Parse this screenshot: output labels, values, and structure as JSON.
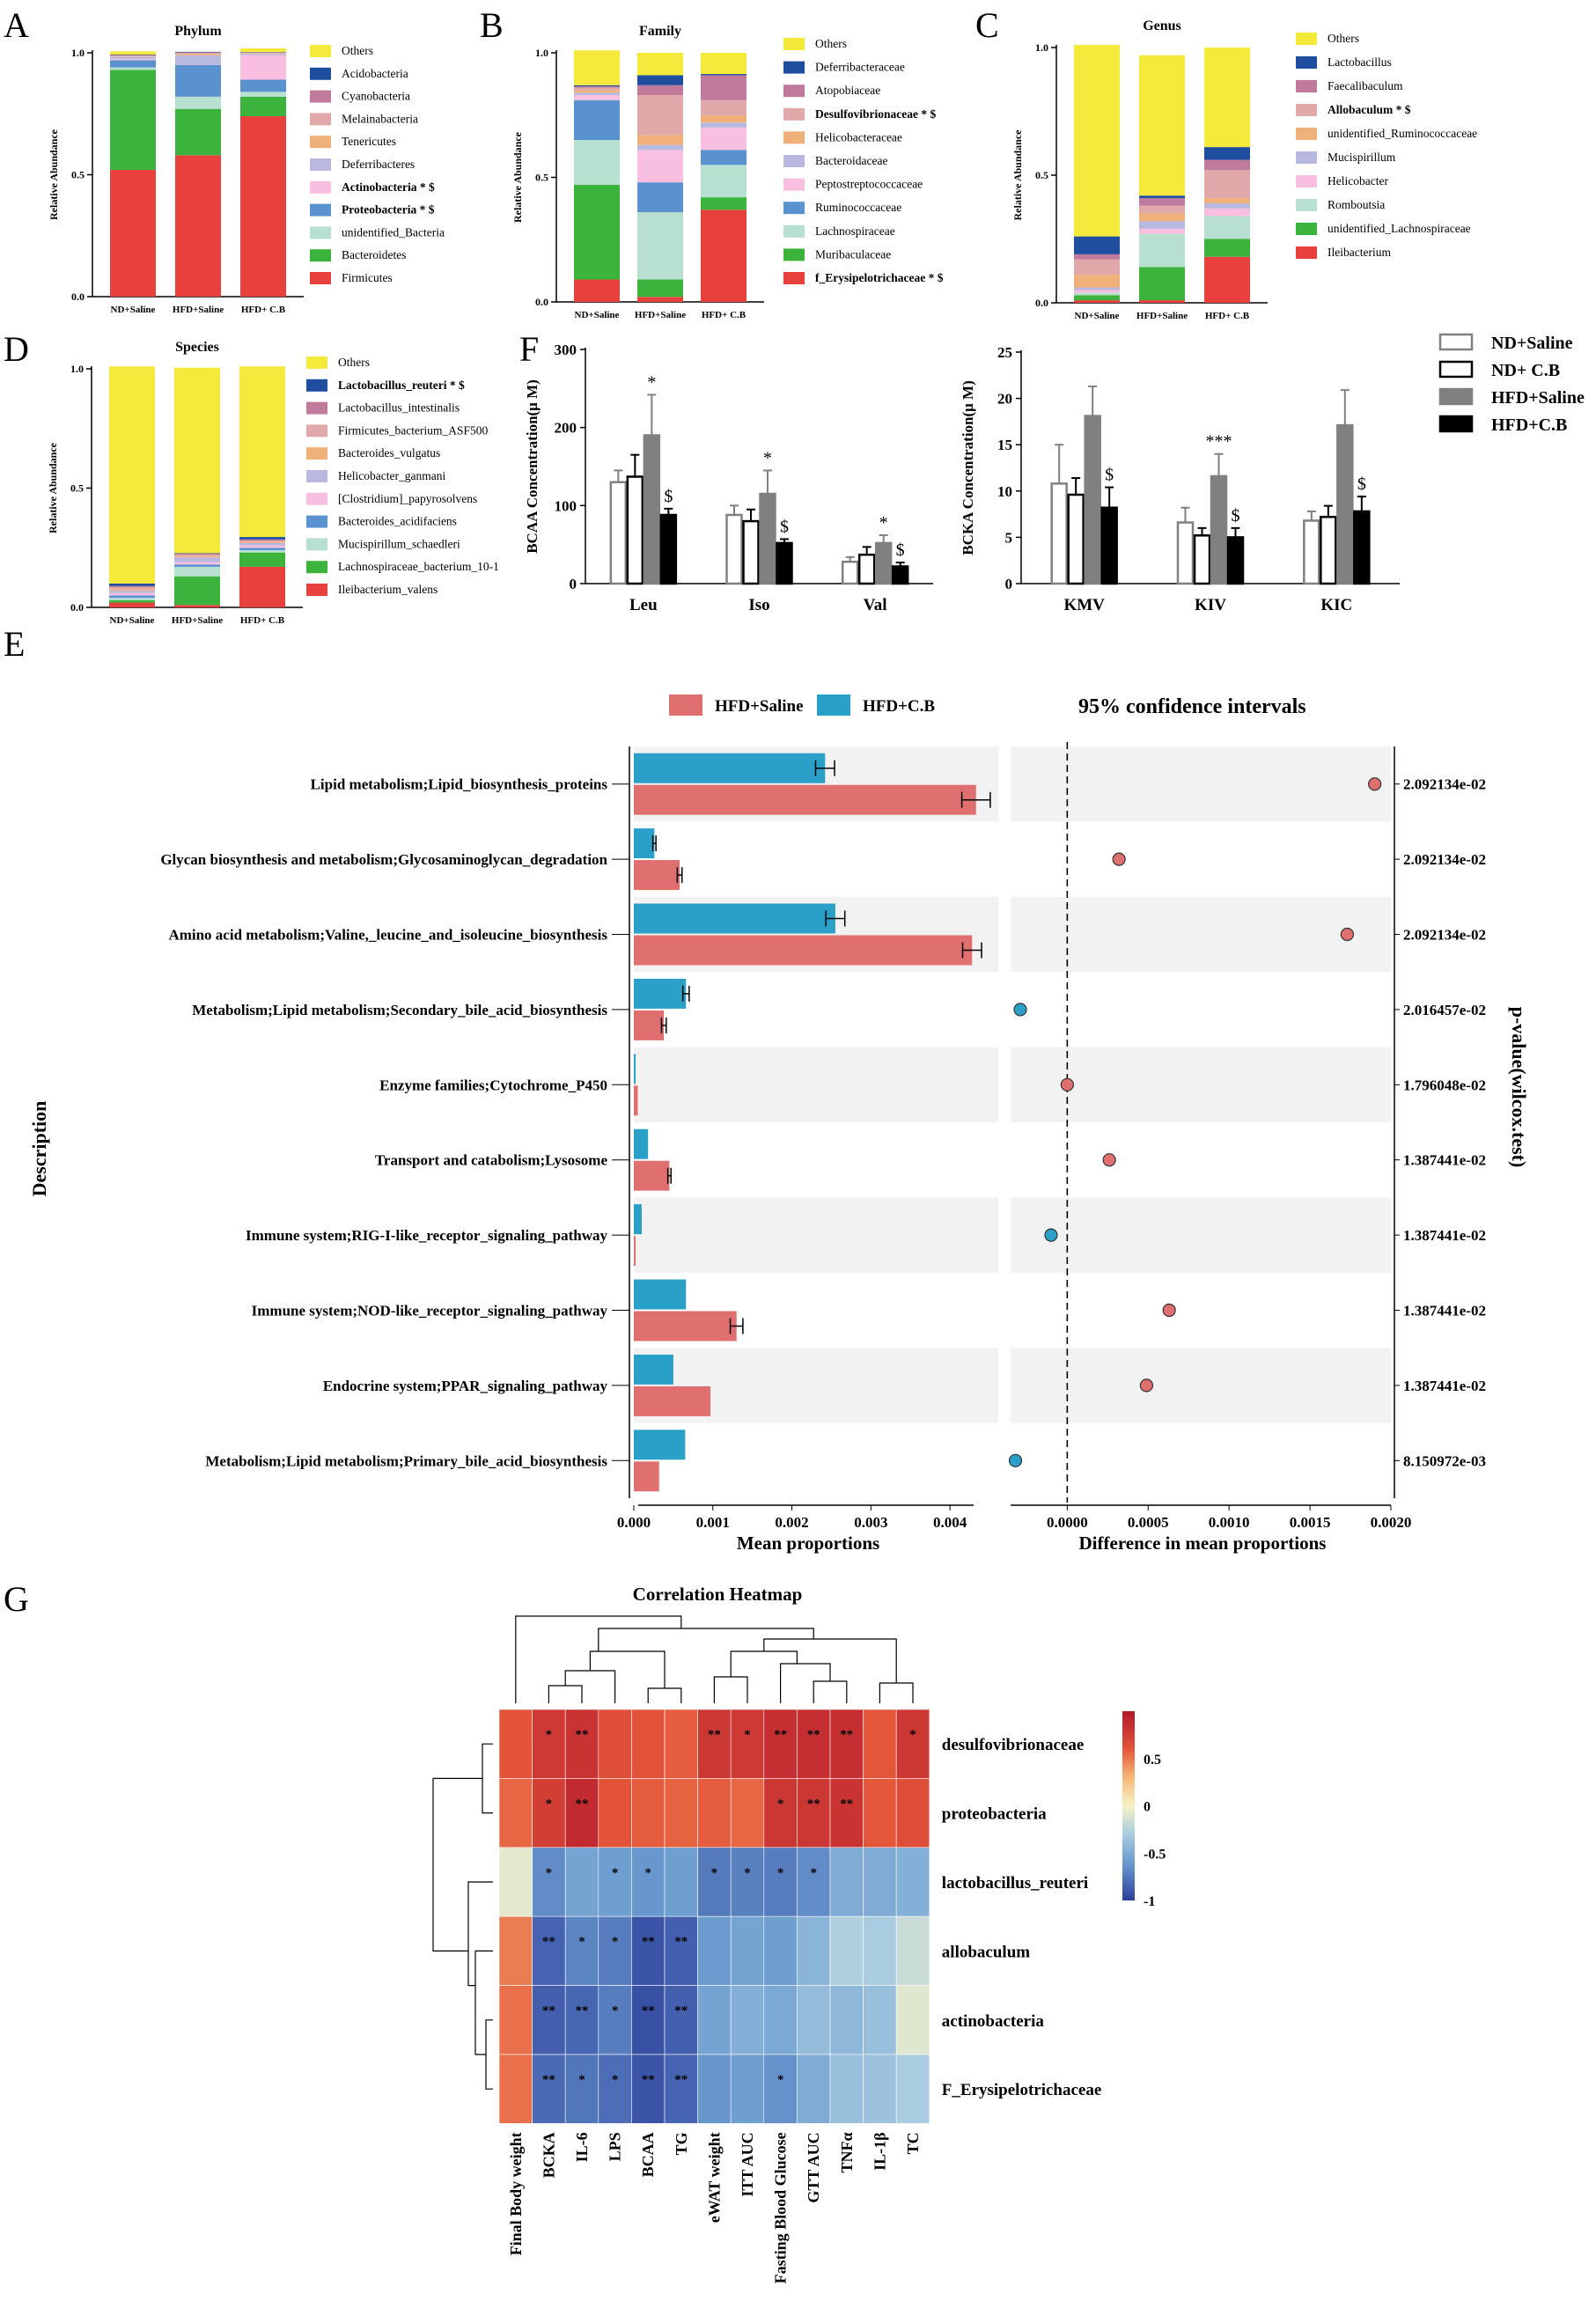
{
  "colors": {
    "Others": "#f5ea3c",
    "blue_dark": "#1f4e9e",
    "mauve": "#c07a9c",
    "pink_tan": "#e0a8a8",
    "orange_tan": "#f0b07a",
    "lavender": "#b8b8e0",
    "light_pink": "#f8bfe0",
    "mid_blue": "#5a92d0",
    "mint": "#b8e0d0",
    "green": "#3cb33c",
    "red": "#e8403c",
    "hfd_saline_E": "#e07070",
    "hfd_cb_E": "#2aa0c8",
    "grey_bar": "#808080",
    "black_bar": "#000000",
    "heat_red": "#b2182b",
    "heat_mid": "#f7f2c8",
    "heat_blue": "#2c3e9b"
  },
  "chart_data": [
    {
      "panel": "A",
      "type": "bar",
      "stacked": true,
      "title": "Phylum",
      "ylabel": "Relative Abundance",
      "ylim": [
        0,
        1
      ],
      "yticks": [
        "0.0",
        "0.5",
        "1.0"
      ],
      "categories": [
        "ND+Saline",
        "HFD+Saline",
        "HFD+ C.B"
      ],
      "series": [
        {
          "name": "Firmicutes",
          "color": "#e8403c",
          "values": [
            0.52,
            0.58,
            0.74
          ]
        },
        {
          "name": "Bacteroidetes",
          "color": "#3cb33c",
          "values": [
            0.41,
            0.19,
            0.08
          ]
        },
        {
          "name": "unidentified_Bacteria",
          "color": "#b8e0d0",
          "values": [
            0.01,
            0.05,
            0.02
          ]
        },
        {
          "name": "Proteobacteria  * $",
          "color": "#5a92d0",
          "values": [
            0.03,
            0.13,
            0.05
          ]
        },
        {
          "name": "Actinobacteria  * $",
          "color": "#f8bfe0",
          "values": [
            0.005,
            0.0,
            0.1
          ]
        },
        {
          "name": "Deferribacteres",
          "color": "#b8b8e0",
          "values": [
            0.01,
            0.04,
            0.005
          ]
        },
        {
          "name": "Tenericutes",
          "color": "#f0b07a",
          "values": [
            0.002,
            0.005,
            0.002
          ]
        },
        {
          "name": "Melainabacteria",
          "color": "#e0a8a8",
          "values": [
            0.002,
            0.005,
            0.002
          ]
        },
        {
          "name": "Cyanobacteria",
          "color": "#c07a9c",
          "values": [
            0.002,
            0.002,
            0.002
          ]
        },
        {
          "name": "Acidobacteria",
          "color": "#1f4e9e",
          "values": [
            0.002,
            0.002,
            0.002
          ]
        },
        {
          "name": "Others",
          "color": "#f5ea3c",
          "values": [
            0.013,
            0.0,
            0.015
          ]
        }
      ]
    },
    {
      "panel": "B",
      "type": "bar",
      "stacked": true,
      "title": "Family",
      "ylabel": "Relative Abundance",
      "ylim": [
        0,
        1
      ],
      "yticks": [
        "0.0",
        "0.5",
        "1.0"
      ],
      "categories": [
        "ND+Saline",
        "HFD+Saline",
        "HFD+ C.B"
      ],
      "series": [
        {
          "name": "f_Erysipelotrichaceae  * $",
          "color": "#e8403c",
          "values": [
            0.09,
            0.02,
            0.37
          ]
        },
        {
          "name": "Muribaculaceae",
          "color": "#3cb33c",
          "values": [
            0.38,
            0.07,
            0.05
          ]
        },
        {
          "name": "Lachnospiraceae",
          "color": "#b8e0d0",
          "values": [
            0.18,
            0.27,
            0.13
          ]
        },
        {
          "name": "Ruminococcaceae",
          "color": "#5a92d0",
          "values": [
            0.16,
            0.12,
            0.06
          ]
        },
        {
          "name": "Peptostreptococcaceae",
          "color": "#f8bfe0",
          "values": [
            0.02,
            0.13,
            0.09
          ]
        },
        {
          "name": "Bacteroidaceae",
          "color": "#b8b8e0",
          "values": [
            0.01,
            0.02,
            0.02
          ]
        },
        {
          "name": "Helicobacteraceae",
          "color": "#f0b07a",
          "values": [
            0.01,
            0.04,
            0.03
          ]
        },
        {
          "name": "Desulfovibrionaceae  * $",
          "color": "#e0a8a8",
          "values": [
            0.01,
            0.16,
            0.06
          ]
        },
        {
          "name": "Atopobiaceae",
          "color": "#c07a9c",
          "values": [
            0.005,
            0.04,
            0.1
          ]
        },
        {
          "name": "Deferribacteraceae",
          "color": "#1f4e9e",
          "values": [
            0.005,
            0.04,
            0.005
          ]
        },
        {
          "name": "Others",
          "color": "#f5ea3c",
          "values": [
            0.14,
            0.09,
            0.085
          ]
        }
      ]
    },
    {
      "panel": "C",
      "type": "bar",
      "stacked": true,
      "title": "Genus",
      "ylabel": "Relative Abundance",
      "ylim": [
        0,
        1
      ],
      "yticks": [
        "0.0",
        "0.5",
        "1.0"
      ],
      "categories": [
        "ND+Saline",
        "HFD+Saline",
        "HFD+ C.B"
      ],
      "series": [
        {
          "name": "Ileibacterium",
          "color": "#e8403c",
          "values": [
            0.01,
            0.01,
            0.18
          ]
        },
        {
          "name": "unidentified_Lachnospiraceae",
          "color": "#3cb33c",
          "values": [
            0.02,
            0.13,
            0.07
          ]
        },
        {
          "name": "Romboutsia",
          "color": "#b8e0d0",
          "values": [
            0.01,
            0.13,
            0.09
          ]
        },
        {
          "name": "Helicobacter",
          "color": "#f8bfe0",
          "values": [
            0.01,
            0.02,
            0.03
          ]
        },
        {
          "name": "Mucispirillum",
          "color": "#b8b8e0",
          "values": [
            0.01,
            0.03,
            0.02
          ]
        },
        {
          "name": "unidentified_Ruminococcaceae",
          "color": "#f0b07a",
          "values": [
            0.05,
            0.03,
            0.02
          ]
        },
        {
          "name": "Allobaculum  * $",
          "color": "#e0a8a8",
          "values": [
            0.06,
            0.03,
            0.11
          ]
        },
        {
          "name": "Faecalibaculum",
          "color": "#c07a9c",
          "values": [
            0.02,
            0.03,
            0.04
          ]
        },
        {
          "name": "Lactobacillus",
          "color": "#1f4e9e",
          "values": [
            0.07,
            0.01,
            0.05
          ]
        },
        {
          "name": "Others",
          "color": "#f5ea3c",
          "values": [
            0.75,
            0.55,
            0.39
          ]
        }
      ]
    },
    {
      "panel": "D",
      "type": "bar",
      "stacked": true,
      "title": "Species",
      "ylabel": "Relative Abundance",
      "ylim": [
        0,
        1
      ],
      "yticks": [
        "0.0",
        "0.5",
        "1.0"
      ],
      "categories": [
        "ND+Saline",
        "HFD+Saline",
        "HFD+ C.B"
      ],
      "series": [
        {
          "name": "Ileibacterium_valens",
          "color": "#e8403c",
          "values": [
            0.02,
            0.01,
            0.17
          ]
        },
        {
          "name": "Lachnospiraceae_bacterium_10-1",
          "color": "#3cb33c",
          "values": [
            0.01,
            0.12,
            0.06
          ]
        },
        {
          "name": "Mucispirillum_schaedleri",
          "color": "#b8e0d0",
          "values": [
            0.01,
            0.04,
            0.01
          ]
        },
        {
          "name": "Bacteroides_acidifaciens",
          "color": "#5a92d0",
          "values": [
            0.01,
            0.01,
            0.01
          ]
        },
        {
          "name": "[Clostridium]_papyrosolvens",
          "color": "#f8bfe0",
          "values": [
            0.01,
            0.01,
            0.01
          ]
        },
        {
          "name": "Helicobacter_ganmani",
          "color": "#b8b8e0",
          "values": [
            0.01,
            0.02,
            0.01
          ]
        },
        {
          "name": "Bacteroides_vulgatus",
          "color": "#f0b07a",
          "values": [
            0.005,
            0.005,
            0.005
          ]
        },
        {
          "name": "Firmicutes_bacterium_ASF500",
          "color": "#e0a8a8",
          "values": [
            0.01,
            0.005,
            0.005
          ]
        },
        {
          "name": "Lactobacillus_intestinalis",
          "color": "#c07a9c",
          "values": [
            0.005,
            0.005,
            0.005
          ]
        },
        {
          "name": "Lactobacillus_reuteri  * $",
          "color": "#1f4e9e",
          "values": [
            0.01,
            0.002,
            0.01
          ]
        },
        {
          "name": "Others",
          "color": "#f5ea3c",
          "values": [
            0.91,
            0.778,
            0.715
          ]
        }
      ]
    },
    {
      "panel": "F-left",
      "type": "bar",
      "ylabel": "BCAA Concentration(μ M)",
      "ylim": [
        0,
        300
      ],
      "yticks": [
        "0",
        "100",
        "200",
        "300"
      ],
      "categories": [
        "Leu",
        "Iso",
        "Val"
      ],
      "groups": [
        "ND+Saline",
        "ND+ C.B",
        "HFD+Saline",
        "HFD+C.B"
      ],
      "series": [
        {
          "name": "ND+Saline",
          "values": [
            130,
            88,
            28
          ],
          "errors": [
            15,
            12,
            6
          ]
        },
        {
          "name": "ND+ C.B",
          "values": [
            137,
            80,
            37
          ],
          "errors": [
            28,
            15,
            10
          ]
        },
        {
          "name": "HFD+Saline",
          "values": [
            190,
            115,
            52
          ],
          "errors": [
            52,
            30,
            10
          ]
        },
        {
          "name": "HFD+C.B",
          "values": [
            88,
            52,
            22
          ],
          "errors": [
            8,
            5,
            5
          ]
        }
      ],
      "annotations": [
        {
          "category": "Leu",
          "group": "HFD+Saline",
          "text": "*"
        },
        {
          "category": "Leu",
          "group": "HFD+C.B",
          "text": "$"
        },
        {
          "category": "Iso",
          "group": "HFD+Saline",
          "text": "*"
        },
        {
          "category": "Iso",
          "group": "HFD+C.B",
          "text": "$"
        },
        {
          "category": "Val",
          "group": "HFD+Saline",
          "text": "*"
        },
        {
          "category": "Val",
          "group": "HFD+C.B",
          "text": "$"
        }
      ]
    },
    {
      "panel": "F-right",
      "type": "bar",
      "ylabel": "BCKA Concentration(μ M)",
      "ylim": [
        0,
        25
      ],
      "yticks": [
        "0",
        "5",
        "10",
        "15",
        "20",
        "25"
      ],
      "categories": [
        "KMV",
        "KIV",
        "KIC"
      ],
      "groups": [
        "ND+Saline",
        "ND+ C.B",
        "HFD+Saline",
        "HFD+C.B"
      ],
      "series": [
        {
          "name": "ND+Saline",
          "values": [
            10.8,
            6.6,
            6.8
          ],
          "errors": [
            4.2,
            1.6,
            1.0
          ]
        },
        {
          "name": "ND+ C.B",
          "values": [
            9.6,
            5.2,
            7.2
          ],
          "errors": [
            1.8,
            0.8,
            1.2
          ]
        },
        {
          "name": "HFD+Saline",
          "values": [
            18.1,
            11.6,
            17.1
          ],
          "errors": [
            3.2,
            2.4,
            3.8
          ]
        },
        {
          "name": "HFD+C.B",
          "values": [
            8.2,
            5.0,
            7.8
          ],
          "errors": [
            2.2,
            1.0,
            1.6
          ]
        }
      ],
      "annotations": [
        {
          "category": "KMV",
          "group": "HFD+C.B",
          "text": "$"
        },
        {
          "category": "KIV",
          "group": "HFD+Saline",
          "text": "***"
        },
        {
          "category": "KIV",
          "group": "HFD+C.B",
          "text": "$"
        },
        {
          "category": "KIC",
          "group": "HFD+C.B",
          "text": "$"
        }
      ]
    },
    {
      "panel": "E",
      "type": "bar",
      "subtype": "extended-error-bar",
      "legend": [
        "HFD+Saline",
        "HFD+C.B"
      ],
      "ci_title": "95% confidence intervals",
      "ylabel": "Description",
      "xlabel_left": "Mean proportions",
      "xlabel_right": "Difference in mean proportions",
      "right_axis_label": "p-value(wilcox.test)",
      "xlim_left": [
        0,
        0.0045
      ],
      "xticks_left": [
        "0.000",
        "0.001",
        "0.002",
        "0.003",
        "0.004"
      ],
      "xlim_right": [
        -0.00035,
        0.002
      ],
      "xticks_right": [
        "0.0000",
        "0.0005",
        "0.0010",
        "0.0015",
        "0.0020"
      ],
      "categories": [
        "Lipid    metabolism;Lipid_biosynthesis_proteins",
        "Glycan    biosynthesis    and    metabolism;Glycosaminoglycan_degradation",
        "Amino    acid    metabolism;Valine,_leucine_and_isoleucine_biosynthesis",
        "Metabolism;Lipid    metabolism;Secondary_bile_acid_biosynthesis",
        "Enzyme    families;Cytochrome_P450",
        "Transport    and    catabolism;Lysosome",
        "Immune    system;RIG-I-like_receptor_signaling_pathway",
        "Immune    system;NOD-like_receptor_signaling_pathway",
        "Endocrine    system;PPAR_signaling_pathway",
        "Metabolism;Lipid    metabolism;Primary_bile_acid_biosynthesis"
      ],
      "hfd_cb": [
        0.00242,
        0.00026,
        0.00255,
        0.00066,
        2e-05,
        0.00018,
        0.0001,
        0.00066,
        0.0005,
        0.00065
      ],
      "hfd_cb_err": [
        0.00012,
        2e-05,
        0.00012,
        4e-05,
        0.0,
        0.0,
        0.0,
        0.0,
        0.0,
        0.0
      ],
      "hfd_saline": [
        0.00433,
        0.00058,
        0.00428,
        0.00038,
        5e-05,
        0.00045,
        2e-05,
        0.0013,
        0.00097,
        0.00032
      ],
      "hfd_saline_err": [
        0.00018,
        3e-05,
        0.00012,
        3e-05,
        0.0,
        2e-05,
        0.0,
        8e-05,
        0.0,
        0.0
      ],
      "difference": [
        0.0019,
        0.00032,
        0.00173,
        -0.00029,
        0.0,
        0.00026,
        -0.0001,
        0.00063,
        0.00049,
        -0.00032
      ],
      "p_values": [
        "2.092134e-02",
        "2.092134e-02",
        "2.092134e-02",
        "2.016457e-02",
        "1.796048e-02",
        "1.387441e-02",
        "1.387441e-02",
        "1.387441e-02",
        "1.387441e-02",
        "8.150972e-03"
      ]
    },
    {
      "panel": "G",
      "type": "heatmap",
      "title": "Correlation Heatmap",
      "rows": [
        "desulfovibrionaceae",
        "proteobacteria",
        "lactobacillus_reuteri",
        "allobaculum",
        "actinobacteria",
        "F_Erysipelotrichaceae"
      ],
      "cols": [
        "Final Body weight",
        "BCKA",
        "IL-6",
        "LPS",
        "BCAA",
        "TG",
        "eWAT weight",
        "ITT AUC",
        "Fasting Blood Glucose",
        "GTT AUC",
        "TNFα",
        "IL-1β",
        "TC"
      ],
      "values": [
        [
          0.62,
          0.78,
          0.82,
          0.65,
          0.62,
          0.58,
          0.8,
          0.78,
          0.85,
          0.85,
          0.85,
          0.6,
          0.8
        ],
        [
          0.55,
          0.75,
          0.88,
          0.62,
          0.58,
          0.56,
          0.58,
          0.55,
          0.8,
          0.8,
          0.82,
          0.6,
          0.65
        ],
        [
          -0.05,
          -0.58,
          -0.45,
          -0.48,
          -0.52,
          -0.48,
          -0.68,
          -0.64,
          -0.66,
          -0.58,
          -0.4,
          -0.4,
          -0.38
        ],
        [
          0.48,
          -0.8,
          -0.62,
          -0.66,
          -0.88,
          -0.82,
          -0.5,
          -0.45,
          -0.48,
          -0.35,
          -0.18,
          -0.2,
          -0.12
        ],
        [
          0.52,
          -0.82,
          -0.78,
          -0.66,
          -0.9,
          -0.82,
          -0.45,
          -0.38,
          -0.42,
          -0.3,
          -0.32,
          -0.28,
          -0.06
        ],
        [
          0.52,
          -0.76,
          -0.7,
          -0.74,
          -0.88,
          -0.8,
          -0.52,
          -0.48,
          -0.55,
          -0.4,
          -0.28,
          -0.26,
          -0.2
        ]
      ],
      "stars": [
        [
          "",
          "*",
          "**",
          "",
          "",
          "",
          "**",
          "*",
          "**",
          "**",
          "**",
          "",
          "*"
        ],
        [
          "",
          "*",
          "**",
          "",
          "",
          "",
          "",
          "",
          "*",
          "**",
          "**",
          "",
          ""
        ],
        [
          "",
          "*",
          "",
          "*",
          "*",
          "",
          "*",
          "*",
          "*",
          "*",
          "",
          "",
          ""
        ],
        [
          "",
          "**",
          "*",
          "*",
          "**",
          "**",
          "",
          "",
          "",
          "",
          "",
          "",
          ""
        ],
        [
          "",
          "**",
          "**",
          "*",
          "**",
          "**",
          "",
          "",
          "",
          "",
          "",
          "",
          ""
        ],
        [
          "",
          "**",
          "*",
          "*",
          "**",
          "**",
          "",
          "",
          "*",
          "",
          "",
          "",
          ""
        ]
      ],
      "scale_min": -1,
      "scale_max": 1,
      "scale_labels": [
        "0.5",
        "0",
        "-0.5",
        "-1"
      ]
    }
  ],
  "panel_labels": {
    "A": "A",
    "B": "B",
    "C": "C",
    "D": "D",
    "E": "E",
    "F": "F",
    "G": "G"
  },
  "legend_F": [
    "ND+Saline",
    "ND+ C.B",
    "HFD+Saline",
    "HFD+C.B"
  ]
}
